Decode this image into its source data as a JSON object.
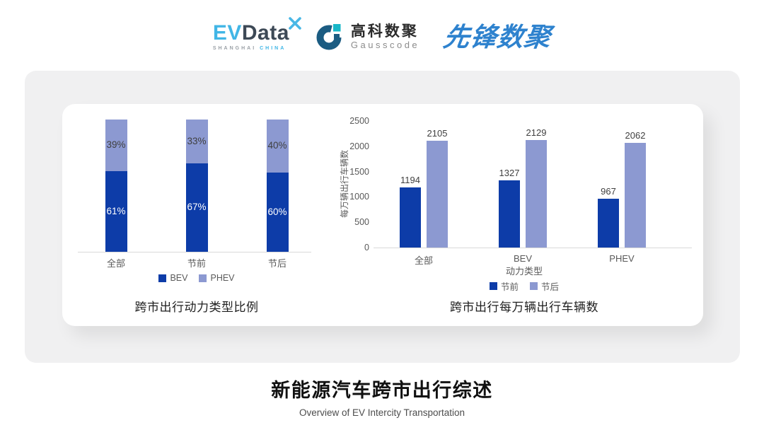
{
  "header": {
    "evdata": {
      "ev": "EV",
      "data": "Data",
      "sub_left": "SHANGHAI",
      "sub_right": "CHINA",
      "star_icon": "x-pinwheel",
      "ev_color": "#41B6E6",
      "data_color": "#3D4956"
    },
    "gausscode": {
      "cn": "高科数聚",
      "en": "Gausscode",
      "icon": "g-ring-mark",
      "icon_dark": "#1B5C82",
      "icon_teal": "#18B7C8"
    },
    "xianfeng": {
      "text": "先锋数聚",
      "color": "#2E82CE"
    }
  },
  "footer": {
    "title": "新能源汽车跨市出行综述",
    "subtitle": "Overview of EV Intercity Transportation"
  },
  "colors": {
    "bev_dark_blue": "#0D3CA8",
    "phev_periwinkle": "#8C99D1",
    "axis_gray": "#D9D9D9",
    "text_gray": "#595959",
    "card_gray": "#F0F0F1"
  },
  "chart_data": [
    {
      "type": "bar",
      "variant": "stacked-percent",
      "title": "跨市出行动力类型比例",
      "categories": [
        "全部",
        "节前",
        "节后"
      ],
      "series": [
        {
          "name": "BEV",
          "values": [
            61,
            67,
            60
          ],
          "color": "#0D3CA8",
          "label_color": "#FFFFFF"
        },
        {
          "name": "PHEV",
          "values": [
            39,
            33,
            40
          ],
          "color": "#8C99D1",
          "label_color": "#3F3F3F"
        }
      ],
      "value_suffix": "%",
      "ylim": [
        0,
        100
      ],
      "grid": false,
      "legend_position": "bottom"
    },
    {
      "type": "bar",
      "variant": "grouped",
      "title": "跨市出行每万辆出行车辆数",
      "xlabel": "动力类型",
      "ylabel": "每万辆出行车辆数",
      "categories": [
        "全部",
        "BEV",
        "PHEV"
      ],
      "series": [
        {
          "name": "节前",
          "values": [
            1194,
            1327,
            967
          ],
          "color": "#0D3CA8"
        },
        {
          "name": "节后",
          "values": [
            2105,
            2129,
            2062
          ],
          "color": "#8C99D1"
        }
      ],
      "ylim": [
        0,
        2500
      ],
      "yticks": [
        0,
        500,
        1000,
        1500,
        2000,
        2500
      ],
      "grid": false,
      "legend_position": "bottom"
    }
  ]
}
